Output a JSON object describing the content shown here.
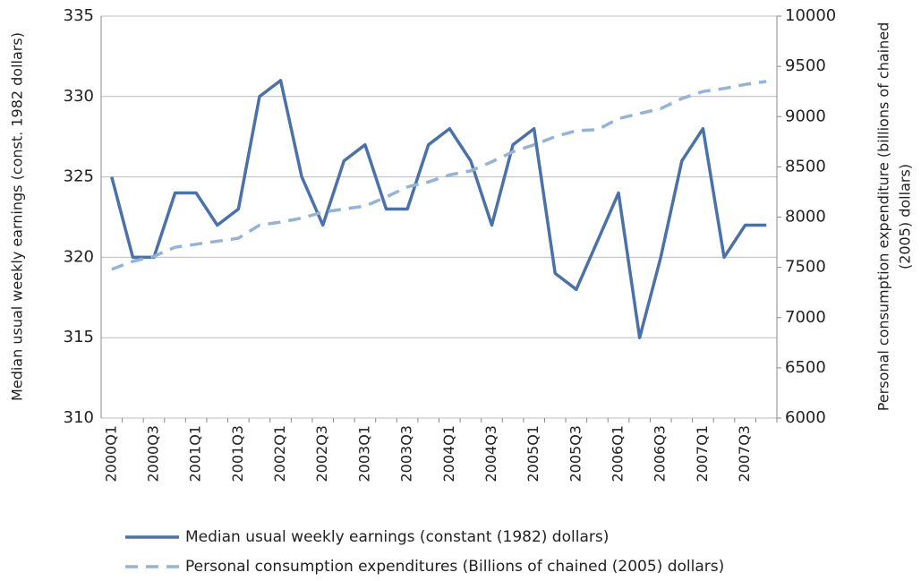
{
  "chart_data": {
    "type": "line",
    "categories": [
      "2000Q1",
      null,
      "2000Q3",
      null,
      "2001Q1",
      null,
      "2001Q3",
      null,
      "2002Q1",
      null,
      "2002Q3",
      null,
      "2003Q1",
      null,
      "2003Q3",
      null,
      "2004Q1",
      null,
      "2004Q3",
      null,
      "2005Q1",
      null,
      "2005Q3",
      null,
      "2006Q1",
      null,
      "2006Q3",
      null,
      "2007Q1",
      null,
      "2007Q3",
      null
    ],
    "series": [
      {
        "name": "Median usual weekly earnings (constant (1982) dollars)",
        "color": "#4a72a8",
        "dash": false,
        "values": [
          325,
          320,
          320,
          324,
          324,
          322,
          323,
          330,
          331,
          325,
          322,
          326,
          327,
          323,
          323,
          327,
          328,
          326,
          322,
          327,
          328,
          319,
          318,
          321,
          324,
          315,
          320,
          326,
          328,
          320,
          322,
          322
        ]
      },
      {
        "name": "Personal consumption expenditures (Billions of chained (2005) dollars)",
        "color": "#95b3d7",
        "dash": true,
        "axis": "y2",
        "values": [
          7480,
          7560,
          7610,
          7700,
          7730,
          7760,
          7790,
          7920,
          7950,
          7990,
          8050,
          8080,
          8110,
          8200,
          8300,
          8350,
          8420,
          8460,
          8550,
          8650,
          8720,
          8800,
          8860,
          8870,
          8980,
          9030,
          9080,
          9180,
          9250,
          9280,
          9320,
          9350
        ]
      }
    ],
    "ylabel": "Median usual weekly earnings (const. 1982 dollars)",
    "y2label": [
      "Personal consumption expenditure (billions of chained",
      "(2005) dollars)"
    ],
    "ylim": [
      310,
      335
    ],
    "yticks": [
      310,
      315,
      320,
      325,
      330,
      335
    ],
    "y2lim": [
      6000,
      10000
    ],
    "y2ticks": [
      6000,
      6500,
      7000,
      7500,
      8000,
      8500,
      9000,
      9500,
      10000
    ],
    "grid": true,
    "legend": "bottom"
  }
}
